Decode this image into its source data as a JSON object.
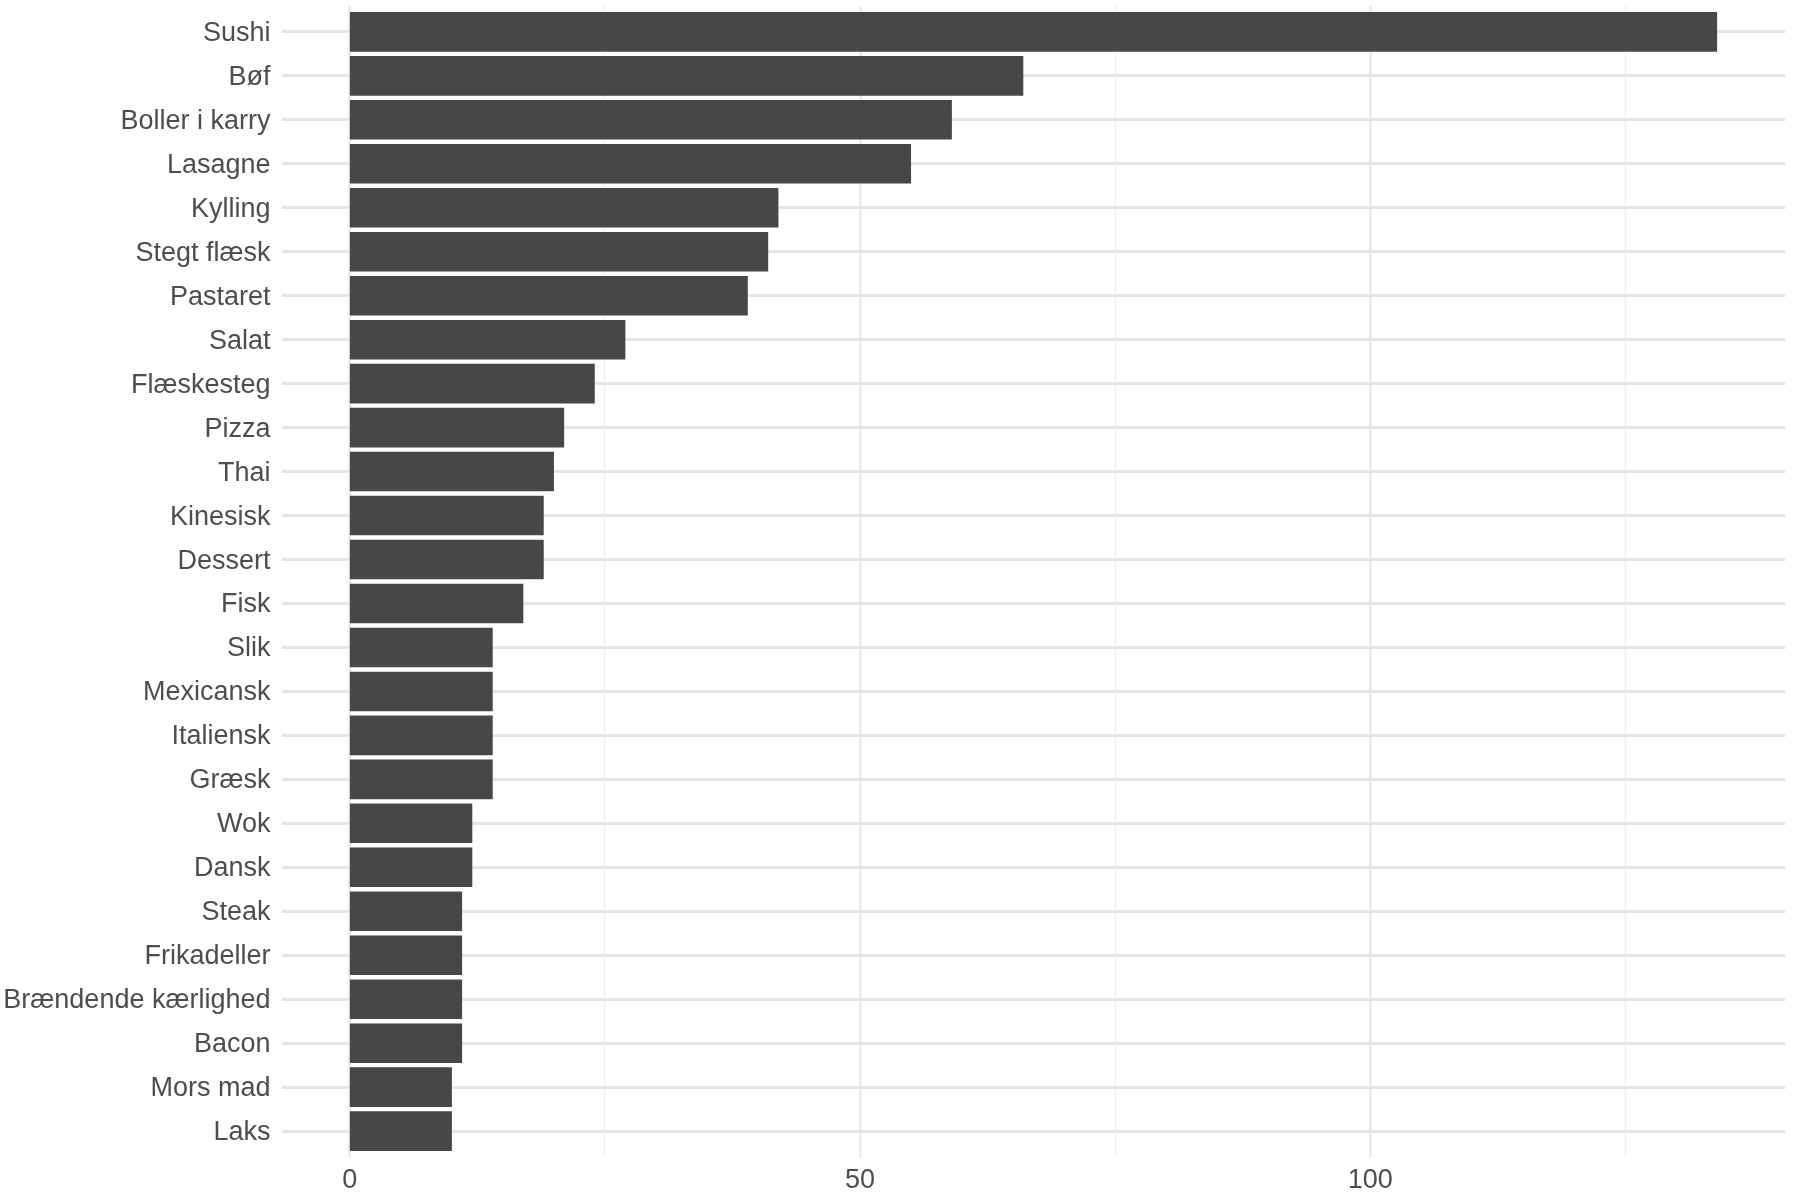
{
  "chart_data": {
    "type": "bar",
    "orientation": "horizontal",
    "categories": [
      "Sushi",
      "Bøf",
      "Boller i karry",
      "Lasagne",
      "Kylling",
      "Stegt flæsk",
      "Pastaret",
      "Salat",
      "Flæskesteg",
      "Pizza",
      "Thai",
      "Kinesisk",
      "Dessert",
      "Fisk",
      "Slik",
      "Mexicansk",
      "Italiensk",
      "Græsk",
      "Wok",
      "Dansk",
      "Steak",
      "Frikadeller",
      "Brændende kærlighed",
      "Bacon",
      "Mors mad",
      "Laks"
    ],
    "values": [
      134,
      66,
      59,
      55,
      42,
      41,
      39,
      27,
      24,
      21,
      20,
      19,
      19,
      17,
      14,
      14,
      14,
      14,
      12,
      12,
      11,
      11,
      11,
      11,
      10,
      10
    ],
    "color": "#474747",
    "xlim": [
      -6.7,
      140.7
    ],
    "xticks": [
      0,
      50,
      100
    ],
    "grid": true
  }
}
